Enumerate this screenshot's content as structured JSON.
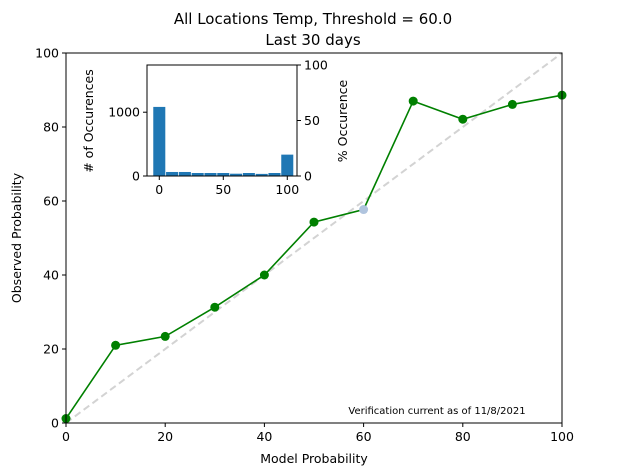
{
  "chart_data": [
    {
      "type": "line",
      "title": "All Locations Temp, Threshold = 60.0",
      "subtitle": "Last 30 days",
      "xlabel": "Model Probability",
      "ylabel": "Observed Probability",
      "xlim": [
        0,
        100
      ],
      "ylim": [
        0,
        100
      ],
      "xticks": [
        0,
        20,
        40,
        60,
        80,
        100
      ],
      "yticks": [
        0,
        20,
        40,
        60,
        80,
        100
      ],
      "grid": false,
      "x": [
        0,
        10,
        20,
        30,
        40,
        50,
        60,
        70,
        80,
        90,
        100
      ],
      "y": [
        1.2,
        21.0,
        23.4,
        31.3,
        40.0,
        54.3,
        57.7,
        87.0,
        82.1,
        86.1,
        88.6
      ],
      "highlight_index": 6,
      "reference_line": {
        "x": [
          0,
          100
        ],
        "y": [
          0,
          100
        ],
        "style": "dashed"
      },
      "annotation": "Verification current as of 11/8/2021",
      "colors": {
        "line": "#008000",
        "highlight": "#b0c4de",
        "reference": "#d3d3d3"
      }
    },
    {
      "type": "bar",
      "position": "inset upper-left",
      "ylabel": "# of Occurences",
      "ylabel_right": "% Occurence",
      "categories": [
        0,
        10,
        20,
        30,
        40,
        50,
        60,
        70,
        80,
        90,
        100
      ],
      "values": [
        1083,
        63,
        63,
        47,
        47,
        47,
        36,
        47,
        33,
        47,
        335
      ],
      "xlim": [
        -9.6,
        107.6
      ],
      "ylim": [
        0,
        1740
      ],
      "xticks": [
        0,
        50,
        100
      ],
      "yticks": [
        0,
        1000
      ],
      "yticks_right": [
        0,
        50,
        100
      ],
      "colors": {
        "bar": "#1f77b4"
      }
    }
  ]
}
